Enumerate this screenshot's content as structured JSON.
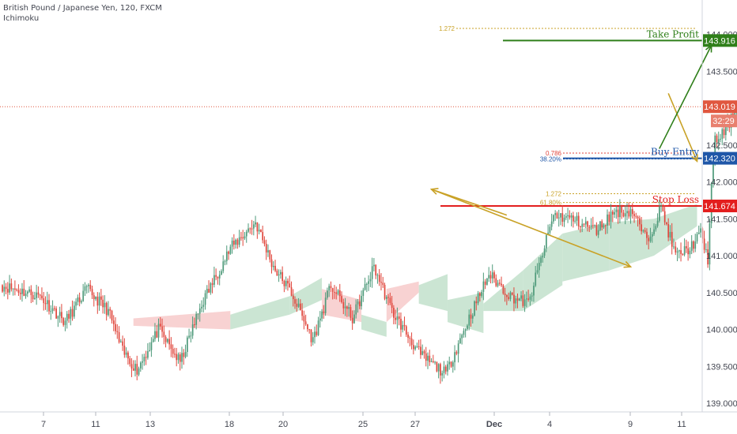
{
  "header": {
    "title": "British Pound / Japanese Yen, 120, FXCM",
    "indicator": "Ichimoku"
  },
  "colors": {
    "bull": "#4e9a7a",
    "bear": "#e0463c",
    "cloud_bull": "#b9dcc4",
    "cloud_bear": "#f6c3c3",
    "take_profit": "#2f7f1a",
    "stop_loss": "#e31e1e",
    "entry": "#1f57a8",
    "fib": "#c9a227",
    "arrow": "#c9a227",
    "price_line": "#e0573f",
    "axis_text": "#434651"
  },
  "chart_data": {
    "type": "candlestick",
    "symbol": "GBP/JPY",
    "timeframe": "120",
    "ylim": [
      138.85,
      144.25
    ],
    "x_ticks": [
      "7",
      "11",
      "13",
      "18",
      "20",
      "25",
      "27",
      "Dec",
      "4",
      "9",
      "11"
    ],
    "y_ticks": [
      "139.000",
      "139.500",
      "140.000",
      "140.500",
      "141.000",
      "141.500",
      "142.000",
      "142.500",
      "143.000",
      "143.500",
      "144.000"
    ],
    "levels": {
      "take_profit": {
        "label": "Take Profit",
        "value": 143.916,
        "value_label": "143.916"
      },
      "buy_entry": {
        "label": "Buy Entry",
        "value": 142.32,
        "value_label": "142.320"
      },
      "stop_loss": {
        "label": "Stop Loss",
        "value": 141.674,
        "value_label": "141.674"
      },
      "last_price": {
        "value": 143.019,
        "value_label": "143.019",
        "countdown": "32:29"
      }
    },
    "fib_levels": [
      {
        "label": "1.272",
        "value": 144.08,
        "color": "#c9a227"
      },
      {
        "label": "0.786",
        "value": 142.39,
        "color": "#e0463c"
      },
      {
        "label": "38.20%",
        "value": 142.31,
        "color": "#1f57a8"
      },
      {
        "label": "1.272",
        "value": 141.84,
        "color": "#c9a227"
      },
      {
        "label": "61.80%",
        "value": 141.72,
        "color": "#c9a227"
      }
    ],
    "anchors": [
      140.6,
      140.45,
      140.1,
      140.55,
      140.25,
      139.7,
      139.45,
      140.0,
      139.55,
      140.35,
      141.1,
      141.45,
      140.85,
      140.5,
      139.85,
      140.6,
      140.15,
      140.85,
      140.25,
      139.65,
      139.4,
      140.1,
      140.75,
      140.45,
      140.35,
      141.55,
      141.5,
      141.35,
      141.6,
      141.6,
      141.2,
      141.65,
      141.0,
      141.1,
      141.3,
      140.95,
      141.95,
      142.55,
      142.7,
      143.0
    ],
    "anchor_counts": [
      22,
      14,
      12,
      12,
      8,
      8,
      12,
      12,
      12,
      16,
      14,
      10,
      10,
      12,
      10,
      12,
      12,
      10,
      16,
      14,
      12,
      12,
      12,
      10,
      14,
      10,
      14,
      10,
      10,
      8,
      8,
      8,
      8,
      6,
      4,
      2,
      2,
      6,
      6
    ],
    "cloud": [
      {
        "start": 73,
        "end": 127,
        "a": 140.05,
        "b": 140.15,
        "a2": 140.0,
        "b2": 140.25
      },
      {
        "start": 127,
        "end": 160,
        "a": 140.2,
        "b": 140.0,
        "a2": 140.45,
        "b2": 140.2
      },
      {
        "start": 160,
        "end": 178,
        "a": 140.45,
        "b": 140.2,
        "a2": 140.7,
        "b2": 140.4
      },
      {
        "start": 178,
        "end": 200,
        "a": 140.2,
        "b": 140.55,
        "a2": 140.1,
        "b2": 140.4
      },
      {
        "start": 200,
        "end": 214,
        "a": 140.2,
        "b": 140.0,
        "a2": 140.1,
        "b2": 139.9
      },
      {
        "start": 214,
        "end": 232,
        "a": 140.1,
        "b": 140.55,
        "a2": 140.5,
        "b2": 140.65
      },
      {
        "start": 232,
        "end": 248,
        "a": 140.6,
        "b": 140.35,
        "a2": 140.75,
        "b2": 140.25
      },
      {
        "start": 248,
        "end": 268,
        "a": 140.4,
        "b": 140.1,
        "a2": 140.5,
        "b2": 139.95
      },
      {
        "start": 268,
        "end": 290,
        "a": 140.35,
        "b": 140.25,
        "a2": 140.8,
        "b2": 140.25
      },
      {
        "start": 290,
        "end": 312,
        "a": 140.8,
        "b": 140.25,
        "a2": 141.3,
        "b2": 140.6
      },
      {
        "start": 312,
        "end": 338,
        "a": 141.3,
        "b": 140.65,
        "a2": 141.45,
        "b2": 140.8
      },
      {
        "start": 338,
        "end": 363,
        "a": 141.45,
        "b": 140.8,
        "a2": 141.5,
        "b2": 141.0
      },
      {
        "start": 363,
        "end": 387,
        "a": 141.5,
        "b": 141.0,
        "a2": 141.7,
        "b2": 141.4
      }
    ],
    "arrows": [
      {
        "from": [
          281,
          141.55
        ],
        "to": [
          239,
          141.9
        ]
      },
      {
        "from": [
          239,
          141.9
        ],
        "to": [
          350,
          140.85
        ]
      },
      {
        "from": [
          371,
          143.2
        ],
        "to": [
          387,
          142.28
        ]
      },
      {
        "from": [
          366,
          142.45
        ],
        "to": [
          395,
          143.85
        ]
      }
    ]
  }
}
